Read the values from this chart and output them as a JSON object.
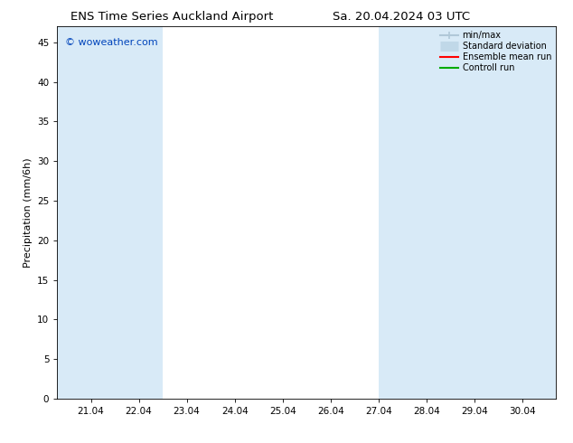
{
  "title_left": "ENS Time Series Auckland Airport",
  "title_right": "Sa. 20.04.2024 03 UTC",
  "ylabel": "Precipitation (mm/6h)",
  "watermark": "© woweather.com",
  "watermark_color": "#0044bb",
  "xlim_start": 20.3,
  "xlim_end": 30.7,
  "ylim": [
    0,
    47
  ],
  "yticks": [
    0,
    5,
    10,
    15,
    20,
    25,
    30,
    35,
    40,
    45
  ],
  "xtick_labels": [
    "21.04",
    "22.04",
    "23.04",
    "24.04",
    "25.04",
    "26.04",
    "27.04",
    "28.04",
    "29.04",
    "30.04"
  ],
  "xtick_positions": [
    21.0,
    22.0,
    23.0,
    24.0,
    25.0,
    26.0,
    27.0,
    28.0,
    29.0,
    30.0
  ],
  "shaded_bands": [
    [
      20.3,
      21.5
    ],
    [
      21.5,
      22.5
    ],
    [
      27.0,
      28.0
    ],
    [
      28.0,
      29.5
    ],
    [
      29.5,
      30.7
    ]
  ],
  "band_color": "#d8eaf7",
  "legend_items": [
    {
      "label": "min/max",
      "color": "#b0c8d8",
      "lw": 1.5,
      "style": "line_with_caps"
    },
    {
      "label": "Standard deviation",
      "color": "#c0d8e8",
      "lw": 8,
      "style": "thick_line"
    },
    {
      "label": "Ensemble mean run",
      "color": "#ff0000",
      "lw": 1.5,
      "style": "line"
    },
    {
      "label": "Controll run",
      "color": "#00aa00",
      "lw": 1.5,
      "style": "line"
    }
  ],
  "bg_color": "#ffffff",
  "plot_bg_color": "#ffffff",
  "title_fontsize": 9.5,
  "axis_fontsize": 8,
  "tick_fontsize": 7.5,
  "watermark_fontsize": 8
}
